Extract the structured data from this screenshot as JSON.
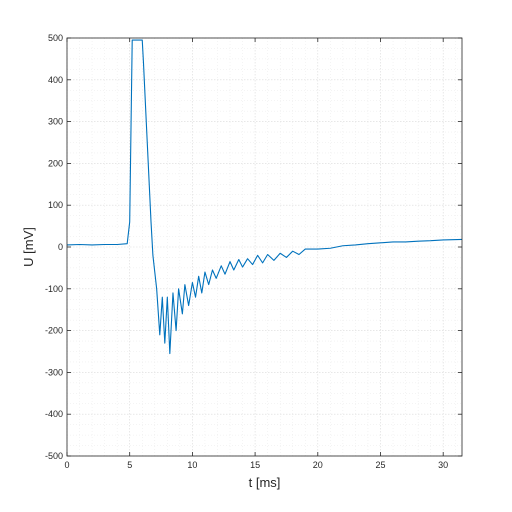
{
  "chart_data": {
    "type": "line",
    "title": "",
    "xlabel": "t [ms]",
    "ylabel": "U [mV]",
    "xlim": [
      0,
      31.5
    ],
    "ylim": [
      -500,
      500
    ],
    "xticks": [
      0,
      5,
      10,
      15,
      20,
      25,
      30
    ],
    "yticks": [
      -500,
      -400,
      -300,
      -200,
      -100,
      0,
      100,
      200,
      300,
      400,
      500
    ],
    "grid": true,
    "minor_grid": true,
    "legend": "none",
    "colors": {
      "line": "#0072BD",
      "axis": "#262626",
      "grid": "#d9d9d9"
    },
    "series": [
      {
        "x": [
          0,
          1,
          2,
          3,
          4,
          4.8,
          5.0,
          5.2,
          6.0,
          6.1,
          6.4,
          6.7,
          6.85,
          7.0,
          7.15,
          7.4,
          7.6,
          7.8,
          8.0,
          8.2,
          8.45,
          8.7,
          8.9,
          9.2,
          9.4,
          9.7,
          10.0,
          10.25,
          10.5,
          10.75,
          11.0,
          11.3,
          11.6,
          11.9,
          12.3,
          12.6,
          13.0,
          13.3,
          13.7,
          14.0,
          14.4,
          14.8,
          15.2,
          15.6,
          16.0,
          16.5,
          17.0,
          17.5,
          18.0,
          18.5,
          19.0,
          20.0,
          21.0,
          22.0,
          23.0,
          24.0,
          25.0,
          26.0,
          27.0,
          28.0,
          29.0,
          30.0,
          31.5
        ],
        "y": [
          5,
          6,
          5,
          6,
          6,
          8,
          60,
          495,
          495,
          440,
          250,
          60,
          -20,
          -60,
          -100,
          -210,
          -120,
          -230,
          -120,
          -255,
          -110,
          -200,
          -100,
          -160,
          -90,
          -140,
          -85,
          -120,
          -70,
          -110,
          -60,
          -90,
          -55,
          -75,
          -45,
          -65,
          -35,
          -55,
          -30,
          -48,
          -28,
          -42,
          -20,
          -38,
          -18,
          -32,
          -15,
          -25,
          -10,
          -18,
          -5,
          -5,
          -3,
          3,
          5,
          8,
          10,
          12,
          12,
          14,
          15,
          17,
          18
        ]
      }
    ]
  }
}
